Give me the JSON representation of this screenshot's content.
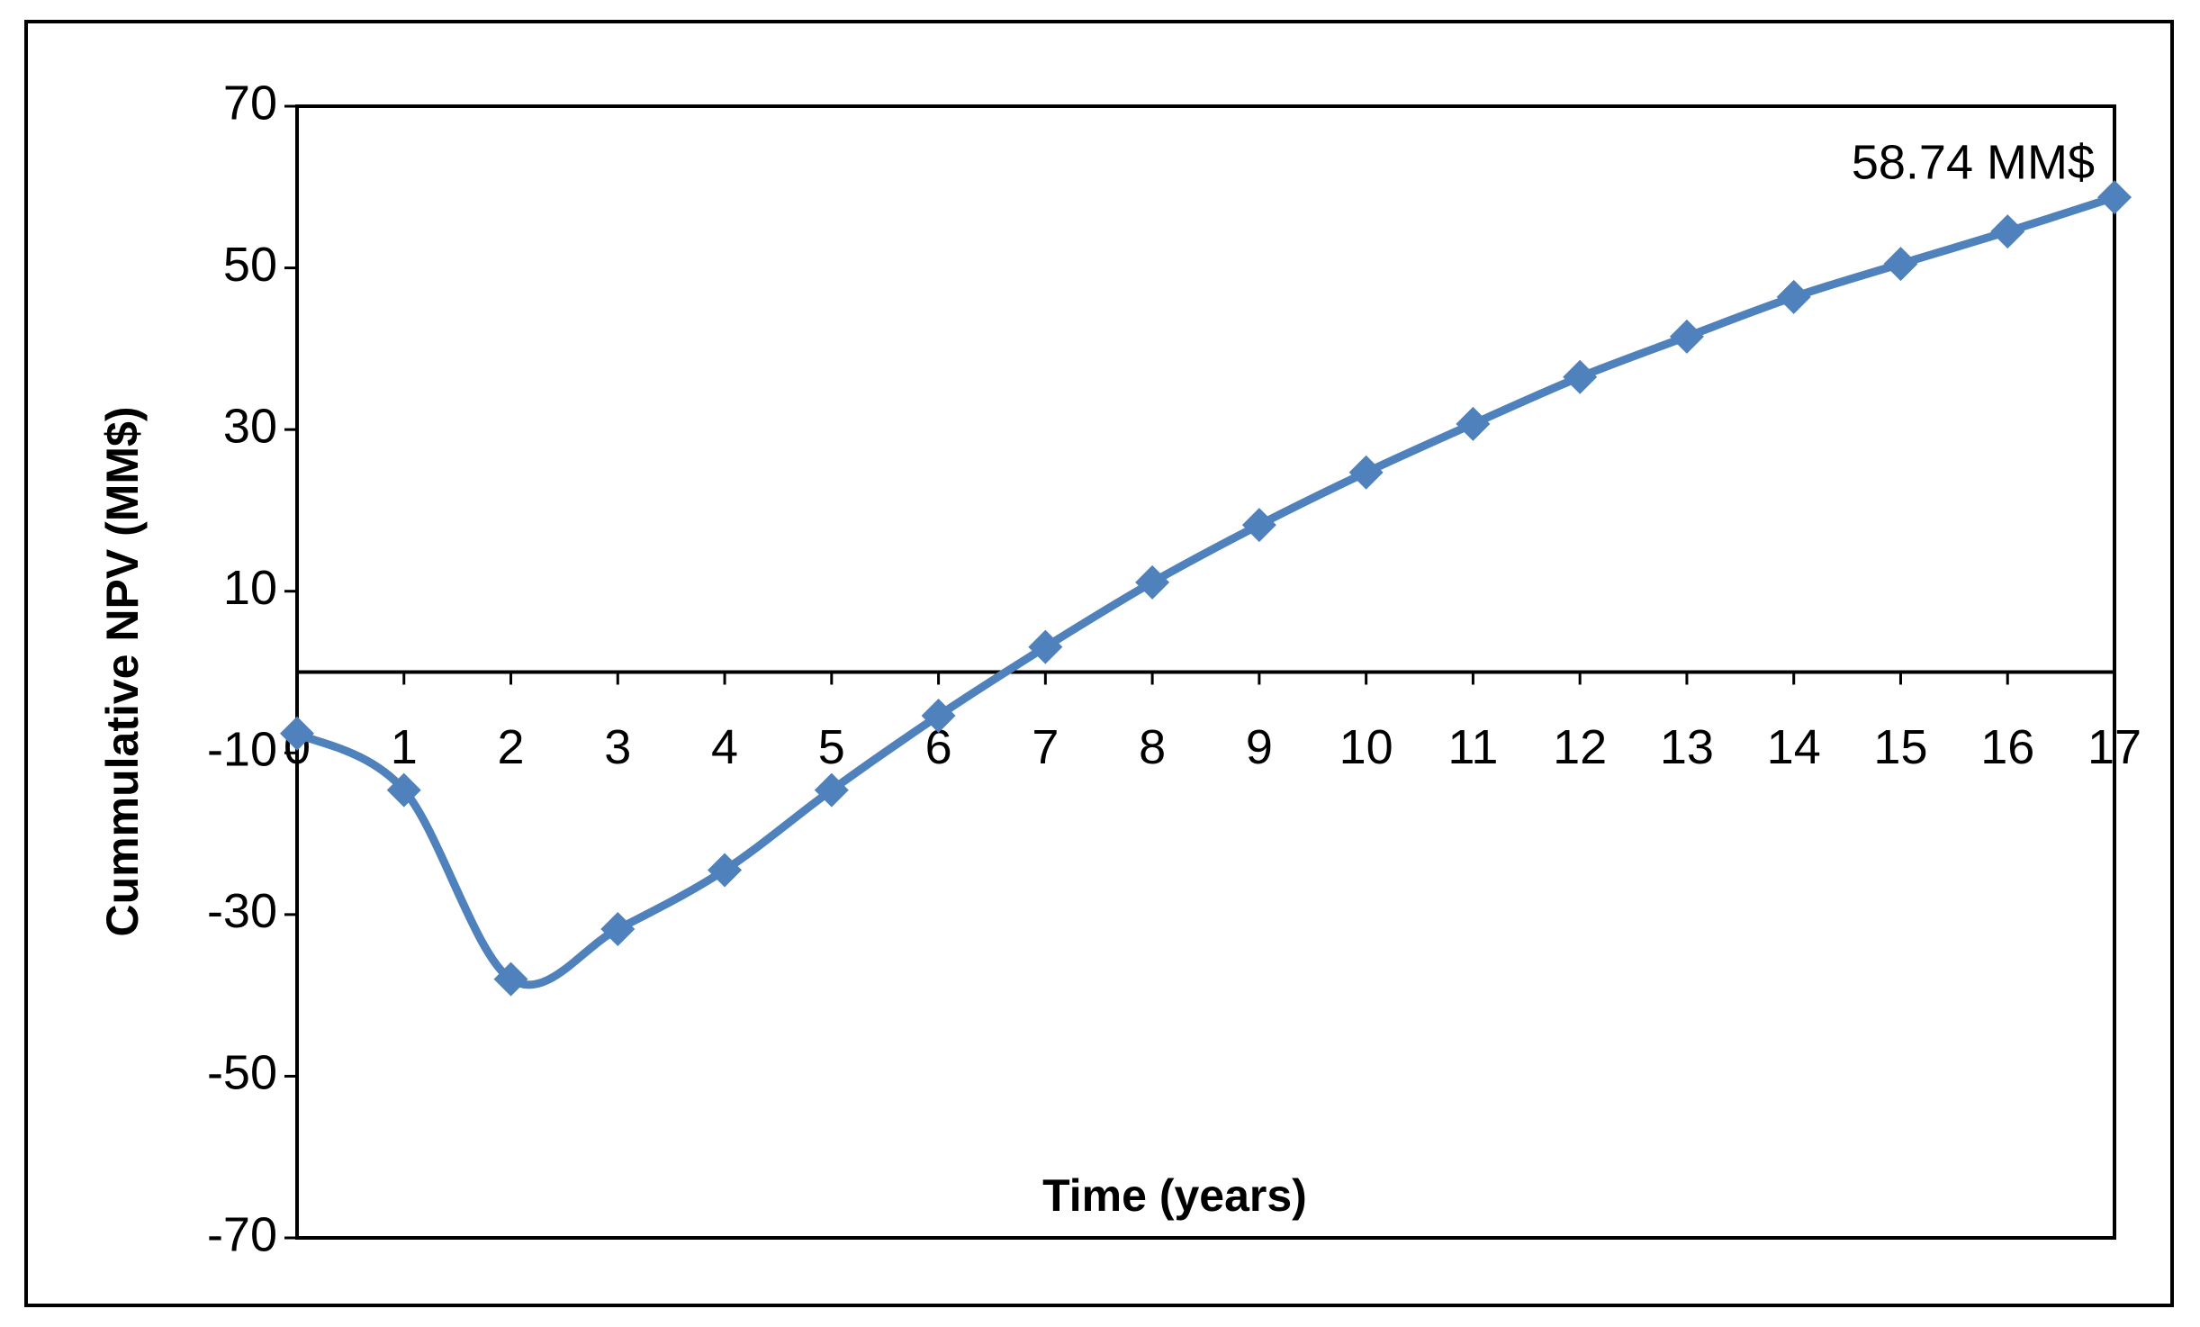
{
  "chart_data": {
    "type": "line",
    "x_label": "Time (years)",
    "y_label": "Cummulative NPV (MM$)",
    "annotation": "58.74 MM$",
    "x": [
      0,
      1,
      2,
      3,
      4,
      5,
      6,
      7,
      8,
      9,
      10,
      11,
      12,
      13,
      14,
      15,
      16,
      17
    ],
    "series": [
      {
        "color": "#4f81bd",
        "values": [
          -7.6,
          -14.6,
          -38,
          -31.8,
          -24.5,
          -14.6,
          -5.4,
          3.1,
          11.1,
          18.2,
          24.7,
          30.7,
          36.5,
          41.5,
          46.4,
          50.5,
          54.5,
          58.74
        ]
      }
    ],
    "xlim": [
      0,
      17
    ],
    "xticks": [
      0,
      1,
      2,
      3,
      4,
      5,
      6,
      7,
      8,
      9,
      10,
      11,
      12,
      13,
      14,
      15,
      16,
      17
    ],
    "ylim": [
      -70,
      70
    ],
    "yticks": [
      -70,
      -50,
      -30,
      -10,
      10,
      30,
      50,
      70
    ],
    "smooth": true,
    "marker": "diamond"
  }
}
